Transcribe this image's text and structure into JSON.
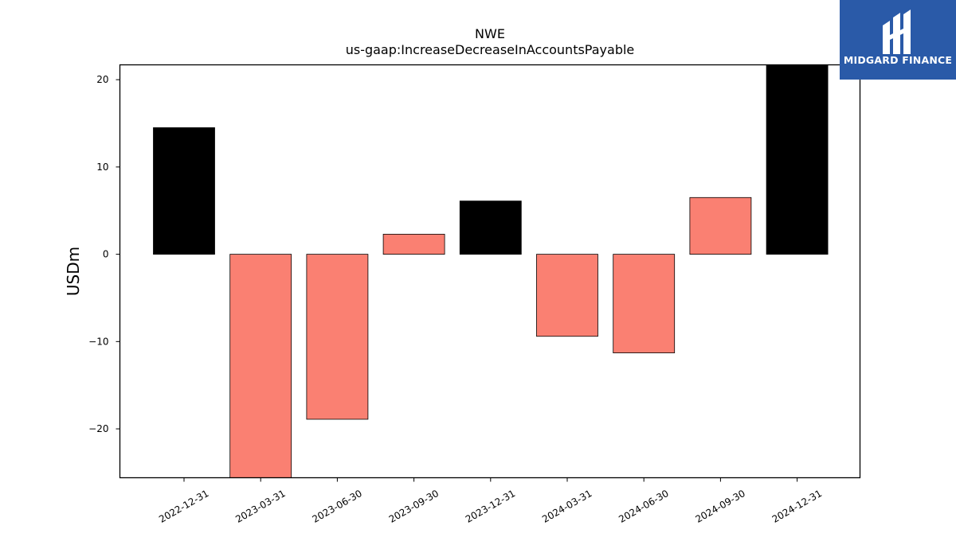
{
  "chart_data": {
    "type": "bar",
    "title": "NWE",
    "subtitle": "us-gaap:IncreaseDecreaseInAccountsPayable",
    "xlabel": "",
    "ylabel": "USDm",
    "categories": [
      "2022-12-31",
      "2023-03-31",
      "2023-06-30",
      "2023-09-30",
      "2023-12-31",
      "2024-03-31",
      "2024-06-30",
      "2024-09-30",
      "2024-12-31"
    ],
    "values": [
      14.5,
      -25.6,
      -18.9,
      2.3,
      6.1,
      -9.4,
      -11.3,
      6.5,
      21.7
    ],
    "bar_colors": [
      "#000000",
      "#fa8072",
      "#fa8072",
      "#fa8072",
      "#000000",
      "#fa8072",
      "#fa8072",
      "#fa8072",
      "#000000"
    ],
    "ylim": [
      -25.6,
      21.7
    ],
    "yticks": [
      -20,
      -10,
      0,
      10,
      20
    ],
    "ytick_labels": [
      "−20",
      "−10",
      "0",
      "10",
      "20"
    ],
    "grid": false,
    "legend": "none"
  },
  "logo": {
    "text": "MIDGARD FINANCE",
    "background": "#2a5aa8",
    "icon": "midgard-logo-icon"
  }
}
